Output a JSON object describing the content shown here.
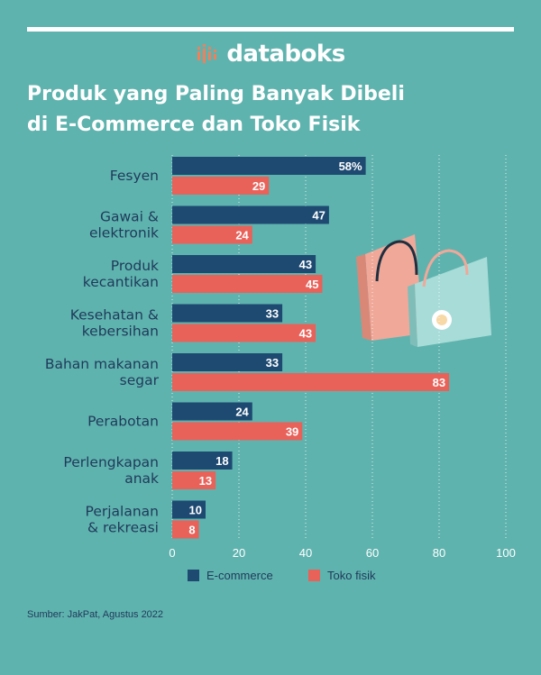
{
  "brand": {
    "name": "databoks"
  },
  "header": {
    "title_line1": "Produk yang Paling Banyak Dibeli",
    "title_line2": "di E-Commerce dan Toko Fisik"
  },
  "source": "Sumber: JakPat, Agustus 2022",
  "colors": {
    "background": "#5fb3ae",
    "ecommerce": "#1e4a72",
    "toko_fisik": "#e8625a",
    "text_dark": "#1f3a5a",
    "brand_accent": "#f07f5a"
  },
  "chart_data": {
    "type": "bar",
    "orientation": "horizontal",
    "categories": [
      [
        "Fesyen"
      ],
      [
        "Gawai &",
        "elektronik"
      ],
      [
        "Produk",
        "kecantikan"
      ],
      [
        "Kesehatan &",
        "kebersihan"
      ],
      [
        "Bahan makanan",
        "segar"
      ],
      [
        "Perabotan"
      ],
      [
        "Perlengkapan",
        "anak"
      ],
      [
        "Perjalanan",
        "& rekreasi"
      ]
    ],
    "series": [
      {
        "name": "E-commerce",
        "values": [
          58,
          47,
          43,
          33,
          33,
          24,
          18,
          10
        ],
        "labels": [
          "58%",
          "47",
          "43",
          "33",
          "33",
          "24",
          "18",
          "10"
        ]
      },
      {
        "name": "Toko fisik",
        "values": [
          29,
          24,
          45,
          43,
          83,
          39,
          13,
          8
        ],
        "labels": [
          "29",
          "24",
          "45",
          "43",
          "83",
          "39",
          "13",
          "8"
        ]
      }
    ],
    "xlim": [
      0,
      100
    ],
    "xticks": [
      "0",
      "20",
      "40",
      "60",
      "80",
      "100"
    ],
    "grid": "vertical-dotted",
    "legend": "bottom-center"
  }
}
